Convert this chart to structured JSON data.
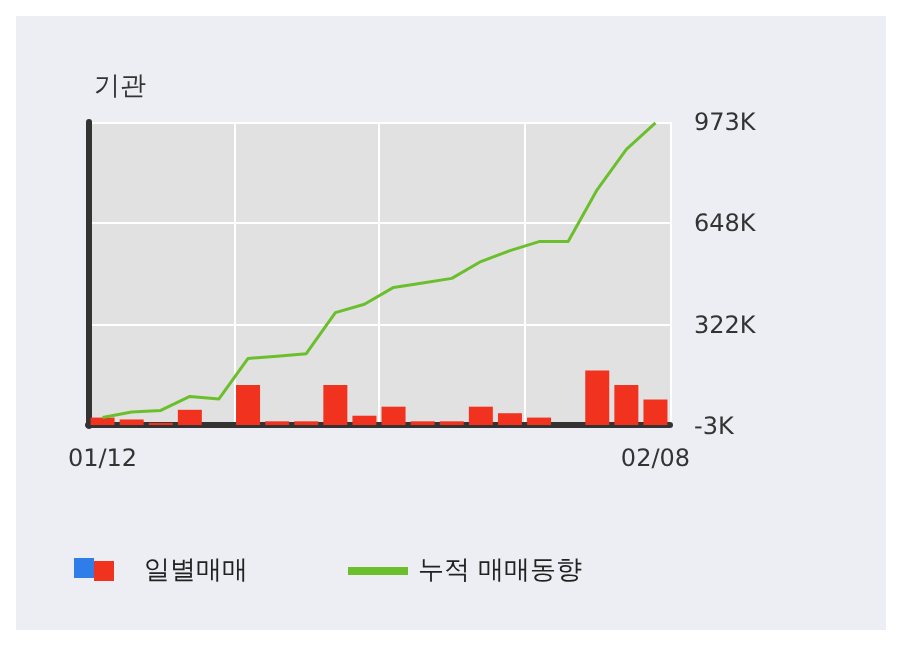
{
  "chart_data": {
    "type": "bar",
    "title": "기관",
    "categories": [
      "01/12",
      null,
      null,
      null,
      null,
      null,
      null,
      null,
      null,
      null,
      null,
      null,
      null,
      null,
      null,
      null,
      null,
      null,
      null,
      "02/08"
    ],
    "series": [
      {
        "name": "일별매매",
        "color": "#f0321e",
        "values": [
          24,
          18,
          7,
          49,
          0,
          129,
          12,
          12,
          129,
          30,
          59,
          12,
          12,
          59,
          38,
          24,
          0,
          175,
          129,
          82
        ]
      },
      {
        "name": "누적 매매동향",
        "type": "line",
        "color": "#6cbf2c",
        "values": [
          24,
          42,
          47,
          92,
          84,
          214,
          221,
          229,
          361,
          388,
          442,
          456,
          471,
          525,
          560,
          589,
          589,
          756,
          885,
          970
        ]
      }
    ],
    "ylim": [
      -3,
      973
    ],
    "yticks": [
      {
        "value": -3,
        "label": "-3K"
      },
      {
        "value": 322,
        "label": "322K"
      },
      {
        "value": 648,
        "label": "648K"
      },
      {
        "value": 973,
        "label": "973K"
      }
    ],
    "grid": true,
    "legend": "bottom",
    "marker": "none"
  }
}
